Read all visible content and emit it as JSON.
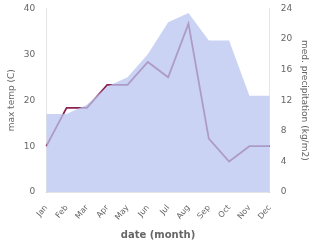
{
  "chart_data": {
    "type": "line",
    "categories": [
      "Jan",
      "Feb",
      "Mar",
      "Apr",
      "May",
      "Jun",
      "Jul",
      "Aug",
      "Sep",
      "Oct",
      "Nov",
      "Dec"
    ],
    "xlabel": "date (month)",
    "ylabel": "max temp (C)",
    "y2label": "med. precipitation (kg/m2)",
    "series": [
      {
        "type": "area",
        "color": "#b8c4ef",
        "values": [
          17,
          17,
          19,
          23,
          25,
          30,
          37,
          39,
          33,
          33,
          21,
          21
        ]
      },
      {
        "type": "line",
        "color": "#8B2252",
        "axis": "y2",
        "values": [
          6,
          11,
          11,
          14,
          14,
          17,
          15,
          22,
          7,
          4,
          6,
          6
        ]
      }
    ],
    "ylim": [
      0,
      40
    ],
    "yticks": [
      0,
      10,
      20,
      30,
      40
    ],
    "y2lim": [
      0,
      24
    ],
    "y2ticks": [
      0,
      4,
      8,
      12,
      16,
      20,
      24
    ],
    "grid": false
  }
}
